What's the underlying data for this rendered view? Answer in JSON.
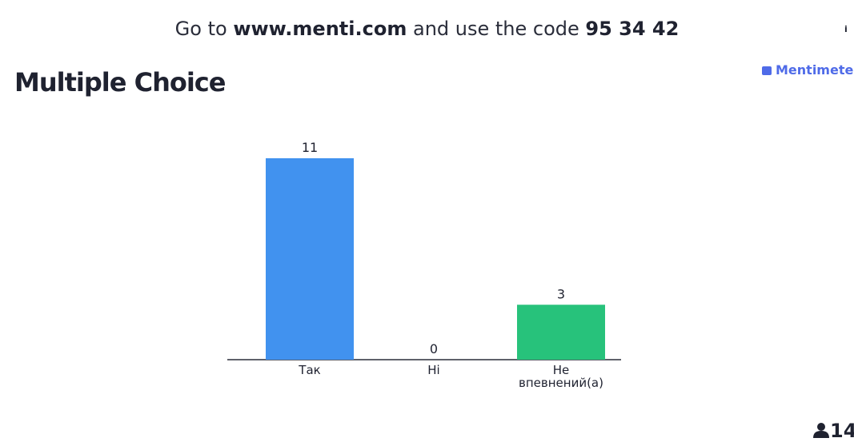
{
  "header": {
    "prefix": "Go to",
    "url": "www.menti.com",
    "middle": "and use the code",
    "code": "95 34 42"
  },
  "info": "i",
  "brand": "Mentimeter",
  "participants": 14,
  "chart_data": {
    "type": "bar",
    "title": "Multiple Choice",
    "categories": [
      "Так",
      "Hi",
      "Не впевнений(а)"
    ],
    "values": [
      11,
      0,
      3
    ],
    "colors": [
      "#4192ef",
      "#e8505b",
      "#27c27b"
    ]
  }
}
